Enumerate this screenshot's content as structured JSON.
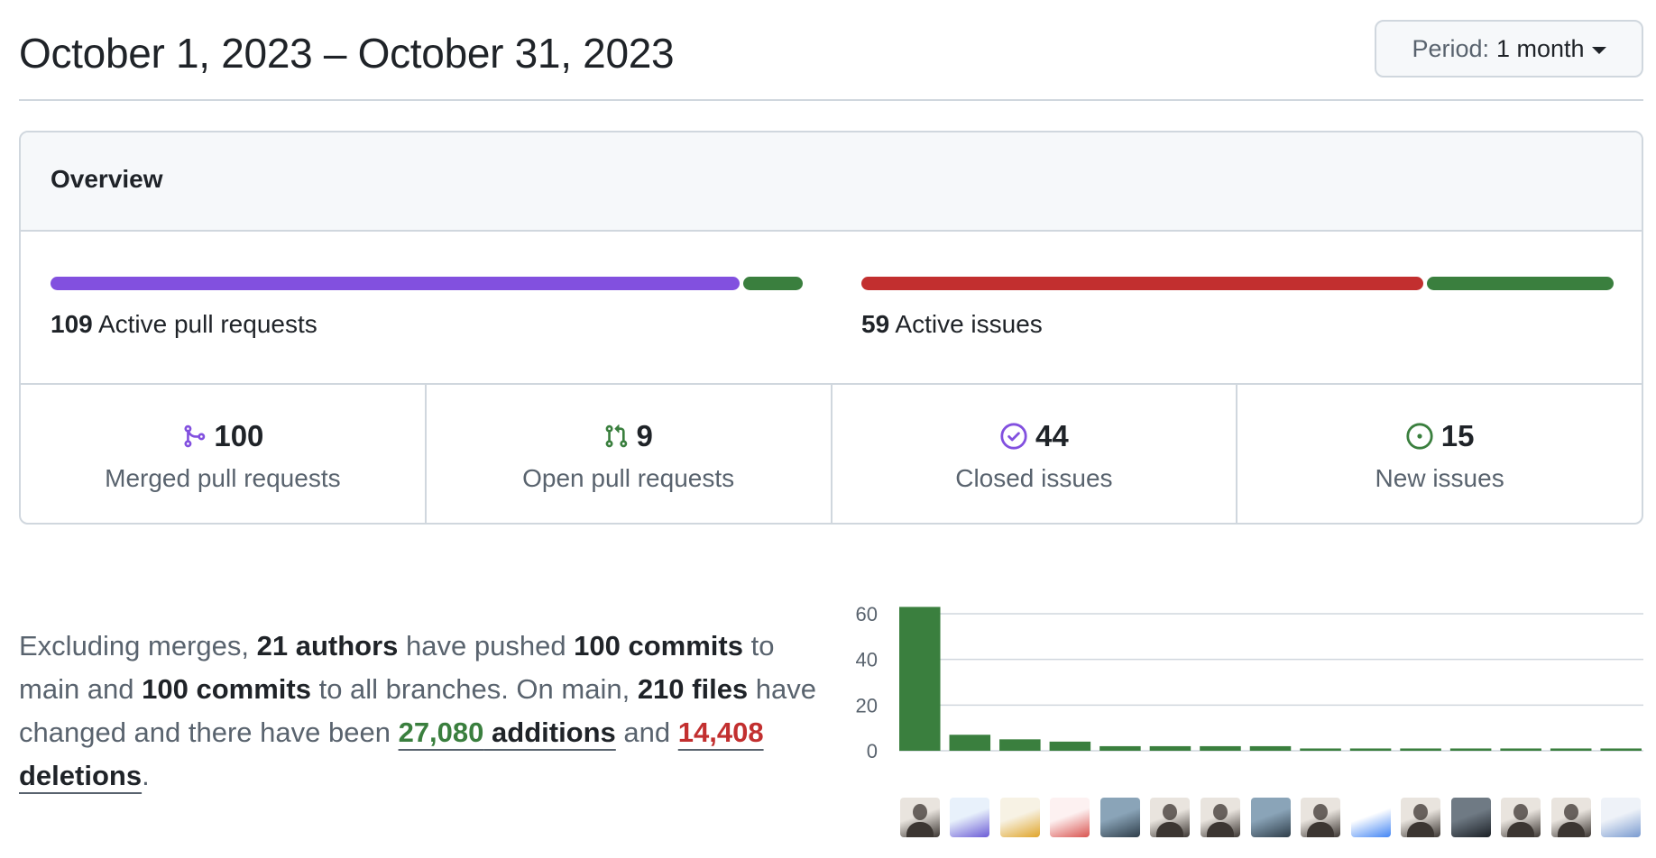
{
  "header": {
    "date_range": "October 1, 2023 – October 31, 2023",
    "period_label": "Period:",
    "period_value": "1 month"
  },
  "overview": {
    "title": "Overview",
    "pull_requests": {
      "count": "109",
      "label": "Active pull requests",
      "merged_fraction": 0.92,
      "open_fraction": 0.08
    },
    "issues": {
      "count": "59",
      "label": "Active issues",
      "closed_fraction": 0.75,
      "new_fraction": 0.25
    },
    "stats": [
      {
        "icon": "git-merge-icon",
        "value": "100",
        "label": "Merged pull requests",
        "color": "#8250df"
      },
      {
        "icon": "git-pull-request-icon",
        "value": "9",
        "label": "Open pull requests",
        "color": "#3a7f3e"
      },
      {
        "icon": "issue-closed-icon",
        "value": "44",
        "label": "Closed issues",
        "color": "#8250df"
      },
      {
        "icon": "issue-opened-icon",
        "value": "15",
        "label": "New issues",
        "color": "#3a7f3e"
      }
    ]
  },
  "summary": {
    "p1": "Excluding merges, ",
    "authors": "21 authors",
    "p2": " have pushed ",
    "commits_main": "100 commits",
    "p3": " to main and ",
    "commits_all": "100 commits",
    "p4": " to all branches. On main, ",
    "files": "210 files",
    "p5": " have changed and there have been ",
    "additions_num": "27,080",
    "additions_word": " additions",
    "p6": " and ",
    "deletions_num": "14,408",
    "deletions_word": " deletions",
    "p7": "."
  },
  "chart_data": {
    "type": "bar",
    "values": [
      63,
      7,
      5,
      4,
      2,
      2,
      2,
      2,
      1,
      1,
      1,
      1,
      1,
      1,
      1
    ],
    "ylim": [
      0,
      60
    ],
    "yticks": [
      "0",
      "20",
      "40",
      "60"
    ],
    "bar_color": "#3a7f3e"
  },
  "contributors": [
    {
      "avatar": "person-avatar"
    },
    {
      "avatar": "illustration-avatar"
    },
    {
      "avatar": "pineapple-avatar"
    },
    {
      "avatar": "pixel-avatar"
    },
    {
      "avatar": "landscape-avatar"
    },
    {
      "avatar": "person-avatar"
    },
    {
      "avatar": "person-avatar"
    },
    {
      "avatar": "landscape-avatar"
    },
    {
      "avatar": "person-avatar"
    },
    {
      "avatar": "logo-avatar"
    },
    {
      "avatar": "person-avatar"
    },
    {
      "avatar": "character-avatar"
    },
    {
      "avatar": "person-avatar"
    },
    {
      "avatar": "person-avatar"
    },
    {
      "avatar": "pattern-avatar"
    }
  ]
}
